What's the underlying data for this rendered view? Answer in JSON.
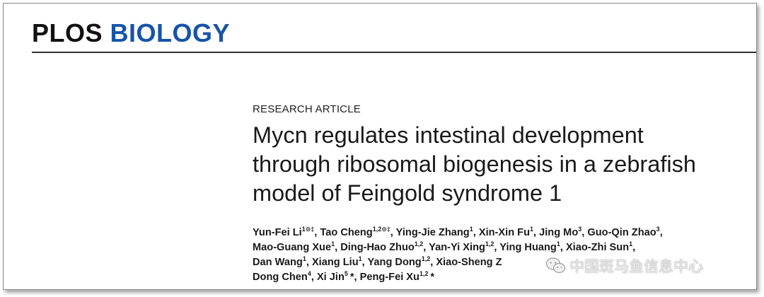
{
  "journal": {
    "name_part1": "PLOS",
    "name_part2": "BIOLOGY"
  },
  "article": {
    "type": "RESEARCH ARTICLE",
    "title_lines": [
      "Mycn regulates intestinal development",
      "through ribosomal biogenesis in a zebrafish",
      "model of Feingold syndrome 1"
    ]
  },
  "authors": {
    "lines": [
      [
        {
          "name": "Yun-Fei Li",
          "sup": "1⊙‡",
          "sep": ", "
        },
        {
          "name": "Tao Cheng",
          "sup": "1,2⊙‡",
          "sep": ", "
        },
        {
          "name": "Ying-Jie Zhang",
          "sup": "1",
          "sep": ", "
        },
        {
          "name": "Xin-Xin Fu",
          "sup": "1",
          "sep": ", "
        },
        {
          "name": "Jing Mo",
          "sup": "3",
          "sep": ", "
        },
        {
          "name": "Guo-Qin Zhao",
          "sup": "3",
          "sep": ","
        }
      ],
      [
        {
          "name": "Mao-Guang Xue",
          "sup": "1",
          "sep": ", "
        },
        {
          "name": "Ding-Hao Zhuo",
          "sup": "1,2",
          "sep": ", "
        },
        {
          "name": "Yan-Yi Xing",
          "sup": "1,2",
          "sep": ", "
        },
        {
          "name": "Ying Huang",
          "sup": "1",
          "sep": ", "
        },
        {
          "name": "Xiao-Zhi Sun",
          "sup": "1",
          "sep": ","
        }
      ],
      [
        {
          "name": "Dan Wang",
          "sup": "1",
          "sep": ", "
        },
        {
          "name": "Xiang Liu",
          "sup": "1",
          "sep": ", "
        },
        {
          "name": "Yang Dong",
          "sup": "1,2",
          "sep": ", "
        },
        {
          "name": "Xiao-Sheng Z",
          "sup": "",
          "sep": ""
        }
      ],
      [
        {
          "name": "Dong Chen",
          "sup": "4",
          "sep": ", "
        },
        {
          "name": "Xi Jin",
          "sup": "5",
          "sep": " *, "
        },
        {
          "name": "Peng-Fei Xu",
          "sup": "1,2",
          "sep": " *"
        }
      ]
    ]
  },
  "watermark": {
    "text": "中国斑马鱼信息中心",
    "icon": "wechat-icon"
  }
}
